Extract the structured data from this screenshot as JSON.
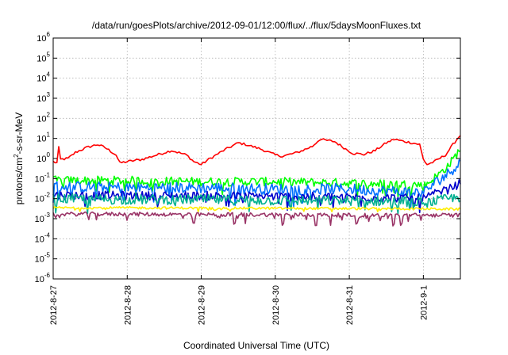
{
  "chart_data": {
    "type": "line",
    "title": "/data/run/goesPlots/archive/2012-09-01/12:00/flux/../flux/5daysMoonFluxes.txt",
    "xlabel": "Coordinated Universal Time (UTC)",
    "ylabel_prefix": "protons/cm",
    "ylabel_sup": "2",
    "ylabel_suffix": "-s-sr-MeV",
    "yscale": "log",
    "ylim": [
      1e-06,
      1000000.0
    ],
    "y_ticks": [
      {
        "base": "10",
        "exp": "-6"
      },
      {
        "base": "10",
        "exp": "-5"
      },
      {
        "base": "10",
        "exp": "-4"
      },
      {
        "base": "10",
        "exp": "-3"
      },
      {
        "base": "10",
        "exp": "-2"
      },
      {
        "base": "10",
        "exp": "-1"
      },
      {
        "base": "10",
        "exp": "0"
      },
      {
        "base": "10",
        "exp": "1"
      },
      {
        "base": "10",
        "exp": "2"
      },
      {
        "base": "10",
        "exp": "3"
      },
      {
        "base": "10",
        "exp": "4"
      },
      {
        "base": "10",
        "exp": "5"
      },
      {
        "base": "10",
        "exp": "6"
      }
    ],
    "x_tick_labels": [
      "2012-8-27",
      "2012-8-28",
      "2012-8-29",
      "2012-8-30",
      "2012-8-31",
      "2012-9-1"
    ],
    "x_range_days": [
      2012.0827,
      2012.0901
    ],
    "grid": true,
    "series": [
      {
        "color": "#ff0000",
        "kind": "smooth",
        "points": [
          [
            0.0,
            0.7
          ],
          [
            0.05,
            0.6
          ],
          [
            0.06,
            5.0
          ],
          [
            0.08,
            3.0
          ],
          [
            0.1,
            0.9
          ],
          [
            0.2,
            1.0
          ],
          [
            0.3,
            2.0
          ],
          [
            0.45,
            3.5
          ],
          [
            0.6,
            5.0
          ],
          [
            0.7,
            3.5
          ],
          [
            0.8,
            2.0
          ],
          [
            0.85,
            1.5
          ],
          [
            0.9,
            0.6
          ],
          [
            1.0,
            0.7
          ],
          [
            1.2,
            0.9
          ],
          [
            1.4,
            1.5
          ],
          [
            1.6,
            2.5
          ],
          [
            1.8,
            1.5
          ],
          [
            1.9,
            0.7
          ],
          [
            2.0,
            0.5
          ],
          [
            2.1,
            0.9
          ],
          [
            2.3,
            2.5
          ],
          [
            2.5,
            6.0
          ],
          [
            2.6,
            5.0
          ],
          [
            2.8,
            3.0
          ],
          [
            3.0,
            1.5
          ],
          [
            3.1,
            1.3
          ],
          [
            3.3,
            2.0
          ],
          [
            3.5,
            4.0
          ],
          [
            3.6,
            9.0
          ],
          [
            3.8,
            7.0
          ],
          [
            3.95,
            3.0
          ],
          [
            4.05,
            1.8
          ],
          [
            4.2,
            1.6
          ],
          [
            4.35,
            2.5
          ],
          [
            4.5,
            6.0
          ],
          [
            4.6,
            9.0
          ],
          [
            4.75,
            7.0
          ],
          [
            4.85,
            6.0
          ],
          [
            4.95,
            5.0
          ],
          [
            5.0,
            0.9
          ],
          [
            5.05,
            0.5
          ],
          [
            5.15,
            0.7
          ],
          [
            5.3,
            1.5
          ],
          [
            5.4,
            5.0
          ],
          [
            5.5,
            15.0
          ]
        ]
      },
      {
        "color": "#00ff00",
        "kind": "noisy",
        "base": [
          [
            0,
            0.08
          ],
          [
            1,
            0.08
          ],
          [
            2,
            0.07
          ],
          [
            3,
            0.07
          ],
          [
            4,
            0.06
          ],
          [
            4.95,
            0.05
          ],
          [
            5.0,
            0.04
          ],
          [
            5.2,
            0.15
          ],
          [
            5.35,
            0.5
          ],
          [
            5.5,
            3.0
          ]
        ],
        "noise": 0.22
      },
      {
        "color": "#0070ff",
        "kind": "noisy",
        "base": [
          [
            0,
            0.04
          ],
          [
            1,
            0.035
          ],
          [
            2,
            0.035
          ],
          [
            3,
            0.03
          ],
          [
            4,
            0.03
          ],
          [
            4.95,
            0.02
          ],
          [
            5.0,
            0.02
          ],
          [
            5.2,
            0.08
          ],
          [
            5.35,
            0.2
          ],
          [
            5.5,
            0.7
          ]
        ],
        "noise": 0.28
      },
      {
        "color": "#0000cc",
        "kind": "noisy",
        "base": [
          [
            0,
            0.015
          ],
          [
            1,
            0.014
          ],
          [
            2,
            0.014
          ],
          [
            3,
            0.013
          ],
          [
            4,
            0.012
          ],
          [
            4.95,
            0.01
          ],
          [
            5.0,
            0.01
          ],
          [
            5.2,
            0.02
          ],
          [
            5.35,
            0.03
          ],
          [
            5.5,
            0.06
          ]
        ],
        "noise": 0.22
      },
      {
        "color": "#00b090",
        "kind": "noisy",
        "base": [
          [
            0,
            0.01
          ],
          [
            1,
            0.009
          ],
          [
            2,
            0.009
          ],
          [
            3,
            0.008
          ],
          [
            4,
            0.008
          ],
          [
            4.95,
            0.007
          ],
          [
            5.0,
            0.006
          ],
          [
            5.2,
            0.008
          ],
          [
            5.35,
            0.01
          ],
          [
            5.5,
            0.012
          ]
        ],
        "noise": 0.25
      },
      {
        "color": "#ffee00",
        "kind": "noisy",
        "base": [
          [
            0,
            0.0035
          ],
          [
            1,
            0.0035
          ],
          [
            2,
            0.0034
          ],
          [
            3,
            0.0033
          ],
          [
            4,
            0.0032
          ],
          [
            5,
            0.0031
          ],
          [
            5.5,
            0.003
          ]
        ],
        "noise": 0.06
      },
      {
        "color": "#993366",
        "kind": "noisy",
        "base": [
          [
            0,
            0.0017
          ],
          [
            1,
            0.0017
          ],
          [
            2,
            0.0016
          ],
          [
            3,
            0.0016
          ],
          [
            4,
            0.0015
          ],
          [
            5,
            0.0015
          ],
          [
            5.5,
            0.0015
          ]
        ],
        "noise": 0.1,
        "dips": [
          1.9,
          2.45,
          2.6,
          3.1,
          3.55,
          3.75,
          4.1,
          4.6,
          4.7
        ]
      }
    ]
  }
}
